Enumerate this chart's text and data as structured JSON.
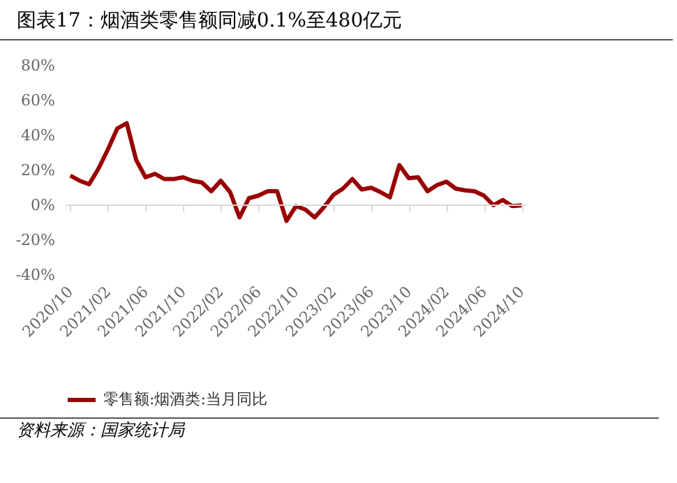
{
  "chart_data": {
    "type": "line",
    "title": "图表17：烟酒类零售额同减0.1%至480亿元",
    "categories": [
      "2020/10",
      null,
      null,
      null,
      "2021/02",
      null,
      null,
      null,
      "2021/06",
      null,
      null,
      null,
      "2021/10",
      null,
      null,
      null,
      "2022/02",
      null,
      null,
      null,
      "2022/06",
      null,
      null,
      null,
      "2022/10",
      null,
      null,
      null,
      "2023/02",
      null,
      null,
      null,
      "2023/06",
      null,
      null,
      null,
      "2023/10",
      null,
      null,
      null,
      "2024/02",
      null,
      null,
      null,
      "2024/06",
      null,
      null,
      null,
      "2024/10"
    ],
    "series": [
      {
        "name": "零售额:烟酒类:当月同比",
        "color": "#990000",
        "values": [
          17,
          14,
          12,
          21,
          32,
          44,
          47,
          26,
          16,
          18,
          15,
          15,
          16,
          14,
          13,
          8,
          14,
          7.5,
          -7,
          4,
          5.5,
          8,
          8,
          -9,
          -0.5,
          -2.5,
          -7,
          -1,
          6,
          9.5,
          15,
          9,
          10,
          7.5,
          4.5,
          23,
          15.5,
          16,
          8,
          11.5,
          13.5,
          9.5,
          8.5,
          8,
          5.5,
          0,
          3,
          -0.5,
          -0.1
        ]
      }
    ],
    "ylim": [
      -40,
      80
    ],
    "yticks": [
      {
        "value": -40,
        "label": "-40%"
      },
      {
        "value": -20,
        "label": "-20%"
      },
      {
        "value": 0,
        "label": "0%"
      },
      {
        "value": 20,
        "label": "20%"
      },
      {
        "value": 40,
        "label": "40%"
      },
      {
        "value": 60,
        "label": "60%"
      },
      {
        "value": 80,
        "label": "80%"
      }
    ],
    "ref_lines": [
      {
        "axis": "y",
        "value": 0,
        "color": "#d9d9d9"
      }
    ],
    "grid": false,
    "legend": "bottom",
    "marker": "none",
    "line_style": "solid",
    "annotations": [
      "资料来源：国家统计局"
    ]
  }
}
